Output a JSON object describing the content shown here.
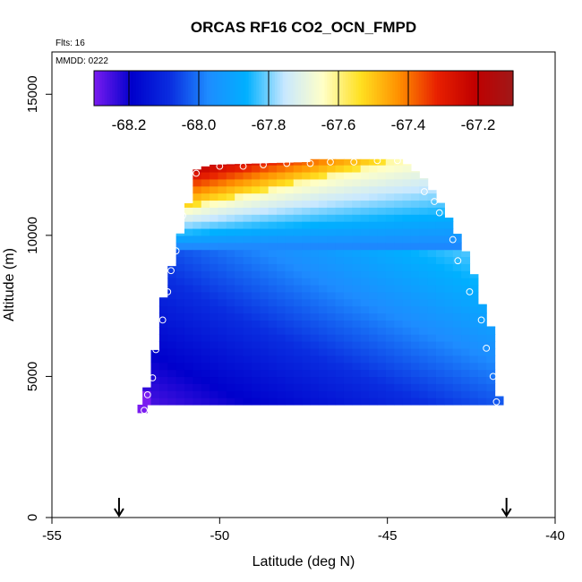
{
  "chart_data": {
    "type": "heatmap",
    "title": "ORCAS RF16 CO2_OCN_FMPD",
    "info_flights": "Flts: 16",
    "info_date": "MMDD: 0222",
    "xlabel": "Latitude (deg N)",
    "ylabel": "Altitude (m)",
    "xlim": [
      -55,
      -40
    ],
    "ylim": [
      0,
      16500
    ],
    "x_ticks": [
      -55,
      -50,
      -45,
      -40
    ],
    "x_tick_labels": [
      "-55",
      "-50",
      "-45",
      "-40"
    ],
    "y_ticks": [
      0,
      5000,
      10000,
      15000
    ],
    "y_tick_labels": [
      "0",
      "5000",
      "10000",
      "15000"
    ],
    "colorbar": {
      "min": -68.3,
      "max": -67.1,
      "ticks": [
        -68.2,
        -68.0,
        -67.8,
        -67.6,
        -67.4,
        -67.2
      ],
      "tick_labels": [
        "-68.2",
        "-68.0",
        "-67.8",
        "-67.6",
        "-67.4",
        "-67.2"
      ],
      "colors": [
        "#7a1cf0",
        "#0000cc",
        "#0a2ee0",
        "#1e8cff",
        "#00b0ff",
        "#c8e8ff",
        "#ffffc8",
        "#ffe020",
        "#ff9000",
        "#e82000",
        "#c00000",
        "#a01818"
      ]
    },
    "field_region": {
      "lat_start": -52.3,
      "lat_end": -41.7,
      "lat_step": 0.25,
      "alt_bottom": 4000,
      "alt_step": 250,
      "upper_envelope": [
        [
          -52.3,
          4300
        ],
        [
          -52.1,
          4800
        ],
        [
          -51.9,
          6100
        ],
        [
          -51.75,
          7300
        ],
        [
          -51.6,
          8300
        ],
        [
          -51.4,
          9000
        ],
        [
          -51.3,
          9900
        ],
        [
          -51.15,
          10100
        ],
        [
          -51.1,
          10700
        ],
        [
          -50.9,
          11200
        ],
        [
          -50.8,
          11800
        ],
        [
          -50.75,
          12300
        ],
        [
          -50.3,
          12500
        ],
        [
          -47.3,
          12600
        ],
        [
          -47.2,
          12700
        ],
        [
          -44.6,
          12700
        ],
        [
          -44.4,
          12500
        ],
        [
          -43.9,
          12000
        ],
        [
          -43.5,
          11300
        ],
        [
          -43.25,
          10800
        ],
        [
          -42.9,
          10000
        ],
        [
          -42.5,
          9000
        ],
        [
          -42.3,
          8000
        ],
        [
          -42.1,
          7300
        ],
        [
          -41.9,
          6700
        ],
        [
          -41.8,
          5000
        ],
        [
          -41.7,
          4300
        ]
      ]
    },
    "flight_points": [
      [
        -52.25,
        3800
      ],
      [
        -52.15,
        4350
      ],
      [
        -52.0,
        4950
      ],
      [
        -51.9,
        5950
      ],
      [
        -51.7,
        7000
      ],
      [
        -51.55,
        8000
      ],
      [
        -51.45,
        8750
      ],
      [
        -51.3,
        9450
      ],
      [
        -51.1,
        10700
      ],
      [
        -50.7,
        12200
      ],
      [
        -50.0,
        12450
      ],
      [
        -49.3,
        12450
      ],
      [
        -48.7,
        12500
      ],
      [
        -48.0,
        12550
      ],
      [
        -47.3,
        12550
      ],
      [
        -46.7,
        12600
      ],
      [
        -46.0,
        12600
      ],
      [
        -45.3,
        12650
      ],
      [
        -44.7,
        12650
      ],
      [
        -43.9,
        11550
      ],
      [
        -43.6,
        11200
      ],
      [
        -43.45,
        10800
      ],
      [
        -43.05,
        9850
      ],
      [
        -42.9,
        9100
      ],
      [
        -42.55,
        8000
      ],
      [
        -42.2,
        7000
      ],
      [
        -42.05,
        6000
      ],
      [
        -41.85,
        5000
      ],
      [
        -41.75,
        4100
      ]
    ],
    "arrow_markers": [
      -53.0,
      -41.45
    ]
  }
}
